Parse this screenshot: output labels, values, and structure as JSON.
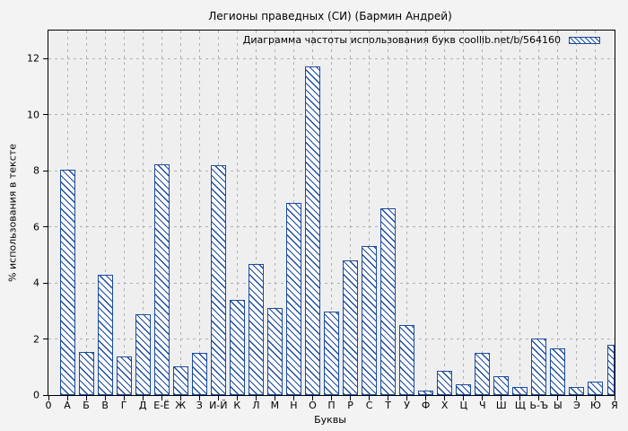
{
  "title": "Легионы праведных (СИ) (Бармин Андрей)",
  "legend": {
    "label": "Диаграмма частоты использования букв coollib.net/b/564160"
  },
  "axes": {
    "x_label": "Буквы",
    "y_label": "% использования в тексте",
    "origin_tick_label": "0"
  },
  "chart_data": {
    "type": "bar",
    "title": "Легионы праведных (СИ) (Бармин Андрей)",
    "legend_label": "Диаграмма частоты использования букв coollib.net/b/564160",
    "xlabel": "Буквы",
    "ylabel": "% использования в тексте",
    "categories": [
      "А",
      "Б",
      "В",
      "Г",
      "Д",
      "Е-Ё",
      "Ж",
      "З",
      "И-Й",
      "К",
      "Л",
      "М",
      "Н",
      "О",
      "П",
      "Р",
      "С",
      "Т",
      "У",
      "Ф",
      "Х",
      "Ц",
      "Ч",
      "Ш",
      "Щ",
      "Ь-Ъ",
      "Ы",
      "Э",
      "Ю",
      "Я"
    ],
    "values": [
      8.05,
      1.55,
      4.28,
      1.38,
      2.89,
      8.22,
      1.04,
      1.5,
      8.2,
      3.4,
      4.67,
      3.12,
      6.85,
      11.72,
      2.98,
      4.8,
      5.3,
      6.65,
      2.5,
      0.15,
      0.88,
      0.4,
      1.52,
      0.67,
      0.3,
      2.02,
      1.67,
      0.3,
      0.47,
      1.8
    ],
    "yticks": [
      0,
      2,
      4,
      6,
      8,
      10,
      12
    ],
    "ylim": [
      0,
      13
    ],
    "grid": true,
    "legend_position": "top-right",
    "hatch_style": "diagonal-backslash",
    "colors": {
      "bar_border": "#1b4b9e",
      "bar_fill": "#ffffff",
      "hatch": "#1b4b9e",
      "grid": "#b0b0b0",
      "axis": "#000000",
      "figure_background": "#f3f3f3",
      "plot_background": "#efefef"
    }
  }
}
